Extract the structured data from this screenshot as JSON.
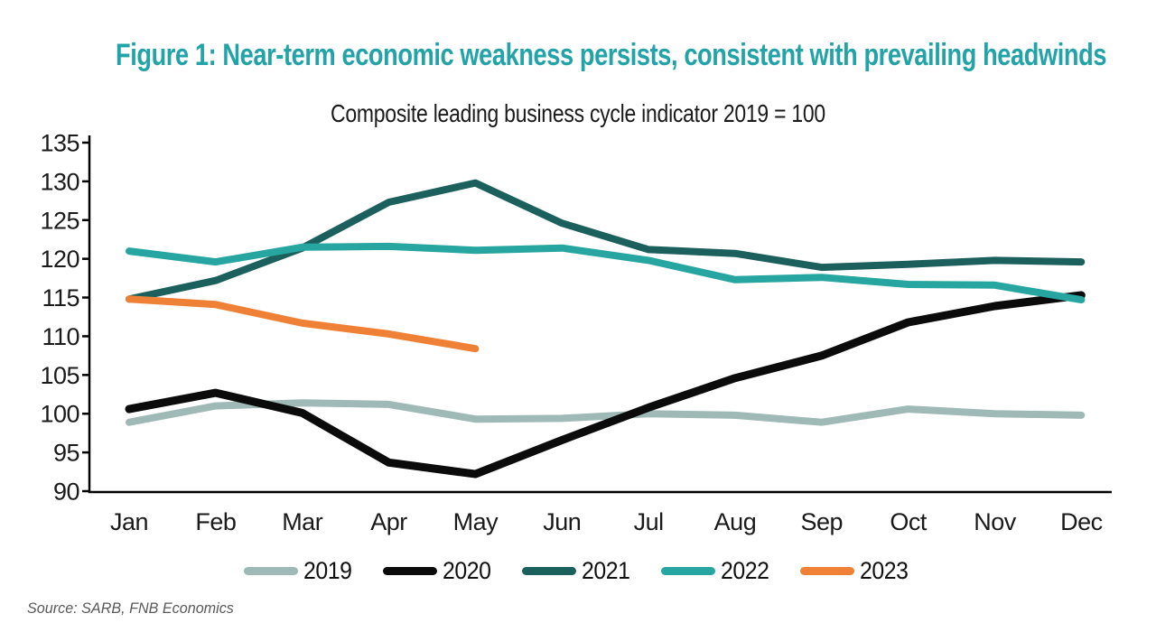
{
  "page": {
    "title": "Figure 1: Near-term economic weakness persists, consistent with prevailing headwinds",
    "subtitle": "Composite leading business cycle indicator 2019 = 100",
    "source": "Source: SARB, FNB Economics"
  },
  "colors": {
    "title_accent": "#21A3A8",
    "axis": "#000000",
    "label_text": "#1A1A1A",
    "source_text": "#595959"
  },
  "chart_data": {
    "type": "line",
    "title": "Composite leading business cycle indicator 2019 = 100",
    "categories": [
      "Jan",
      "Feb",
      "Mar",
      "Apr",
      "May",
      "Jun",
      "Jul",
      "Aug",
      "Sep",
      "Oct",
      "Nov",
      "Dec"
    ],
    "xlabel": "",
    "ylabel": "",
    "ylim": [
      90,
      135
    ],
    "ytick_step": 5,
    "yticks": [
      90,
      95,
      100,
      105,
      110,
      115,
      120,
      125,
      130,
      135
    ],
    "grid": false,
    "legend_position": "bottom",
    "series": [
      {
        "name": "2019",
        "color": "#9FB9B6",
        "values": [
          98.9,
          101.0,
          101.4,
          101.2,
          99.3,
          99.4,
          100.0,
          99.8,
          98.9,
          100.6,
          100.0,
          99.8
        ]
      },
      {
        "name": "2020",
        "color": "#0B0B0B",
        "values": [
          100.6,
          102.7,
          100.1,
          93.7,
          92.2,
          96.6,
          100.8,
          104.6,
          107.5,
          111.8,
          113.9,
          115.3
        ]
      },
      {
        "name": "2021",
        "color": "#1C605D",
        "values": [
          114.8,
          117.2,
          121.4,
          127.3,
          129.8,
          124.6,
          121.2,
          120.7,
          118.9,
          119.3,
          119.8,
          119.6
        ]
      },
      {
        "name": "2022",
        "color": "#27A5A0",
        "values": [
          121.0,
          119.6,
          121.5,
          121.6,
          121.1,
          121.4,
          119.8,
          117.3,
          117.6,
          116.7,
          116.6,
          114.7
        ]
      },
      {
        "name": "2023",
        "color": "#EF8136",
        "values": [
          114.8,
          114.1,
          111.7,
          110.3,
          108.4
        ]
      }
    ]
  }
}
